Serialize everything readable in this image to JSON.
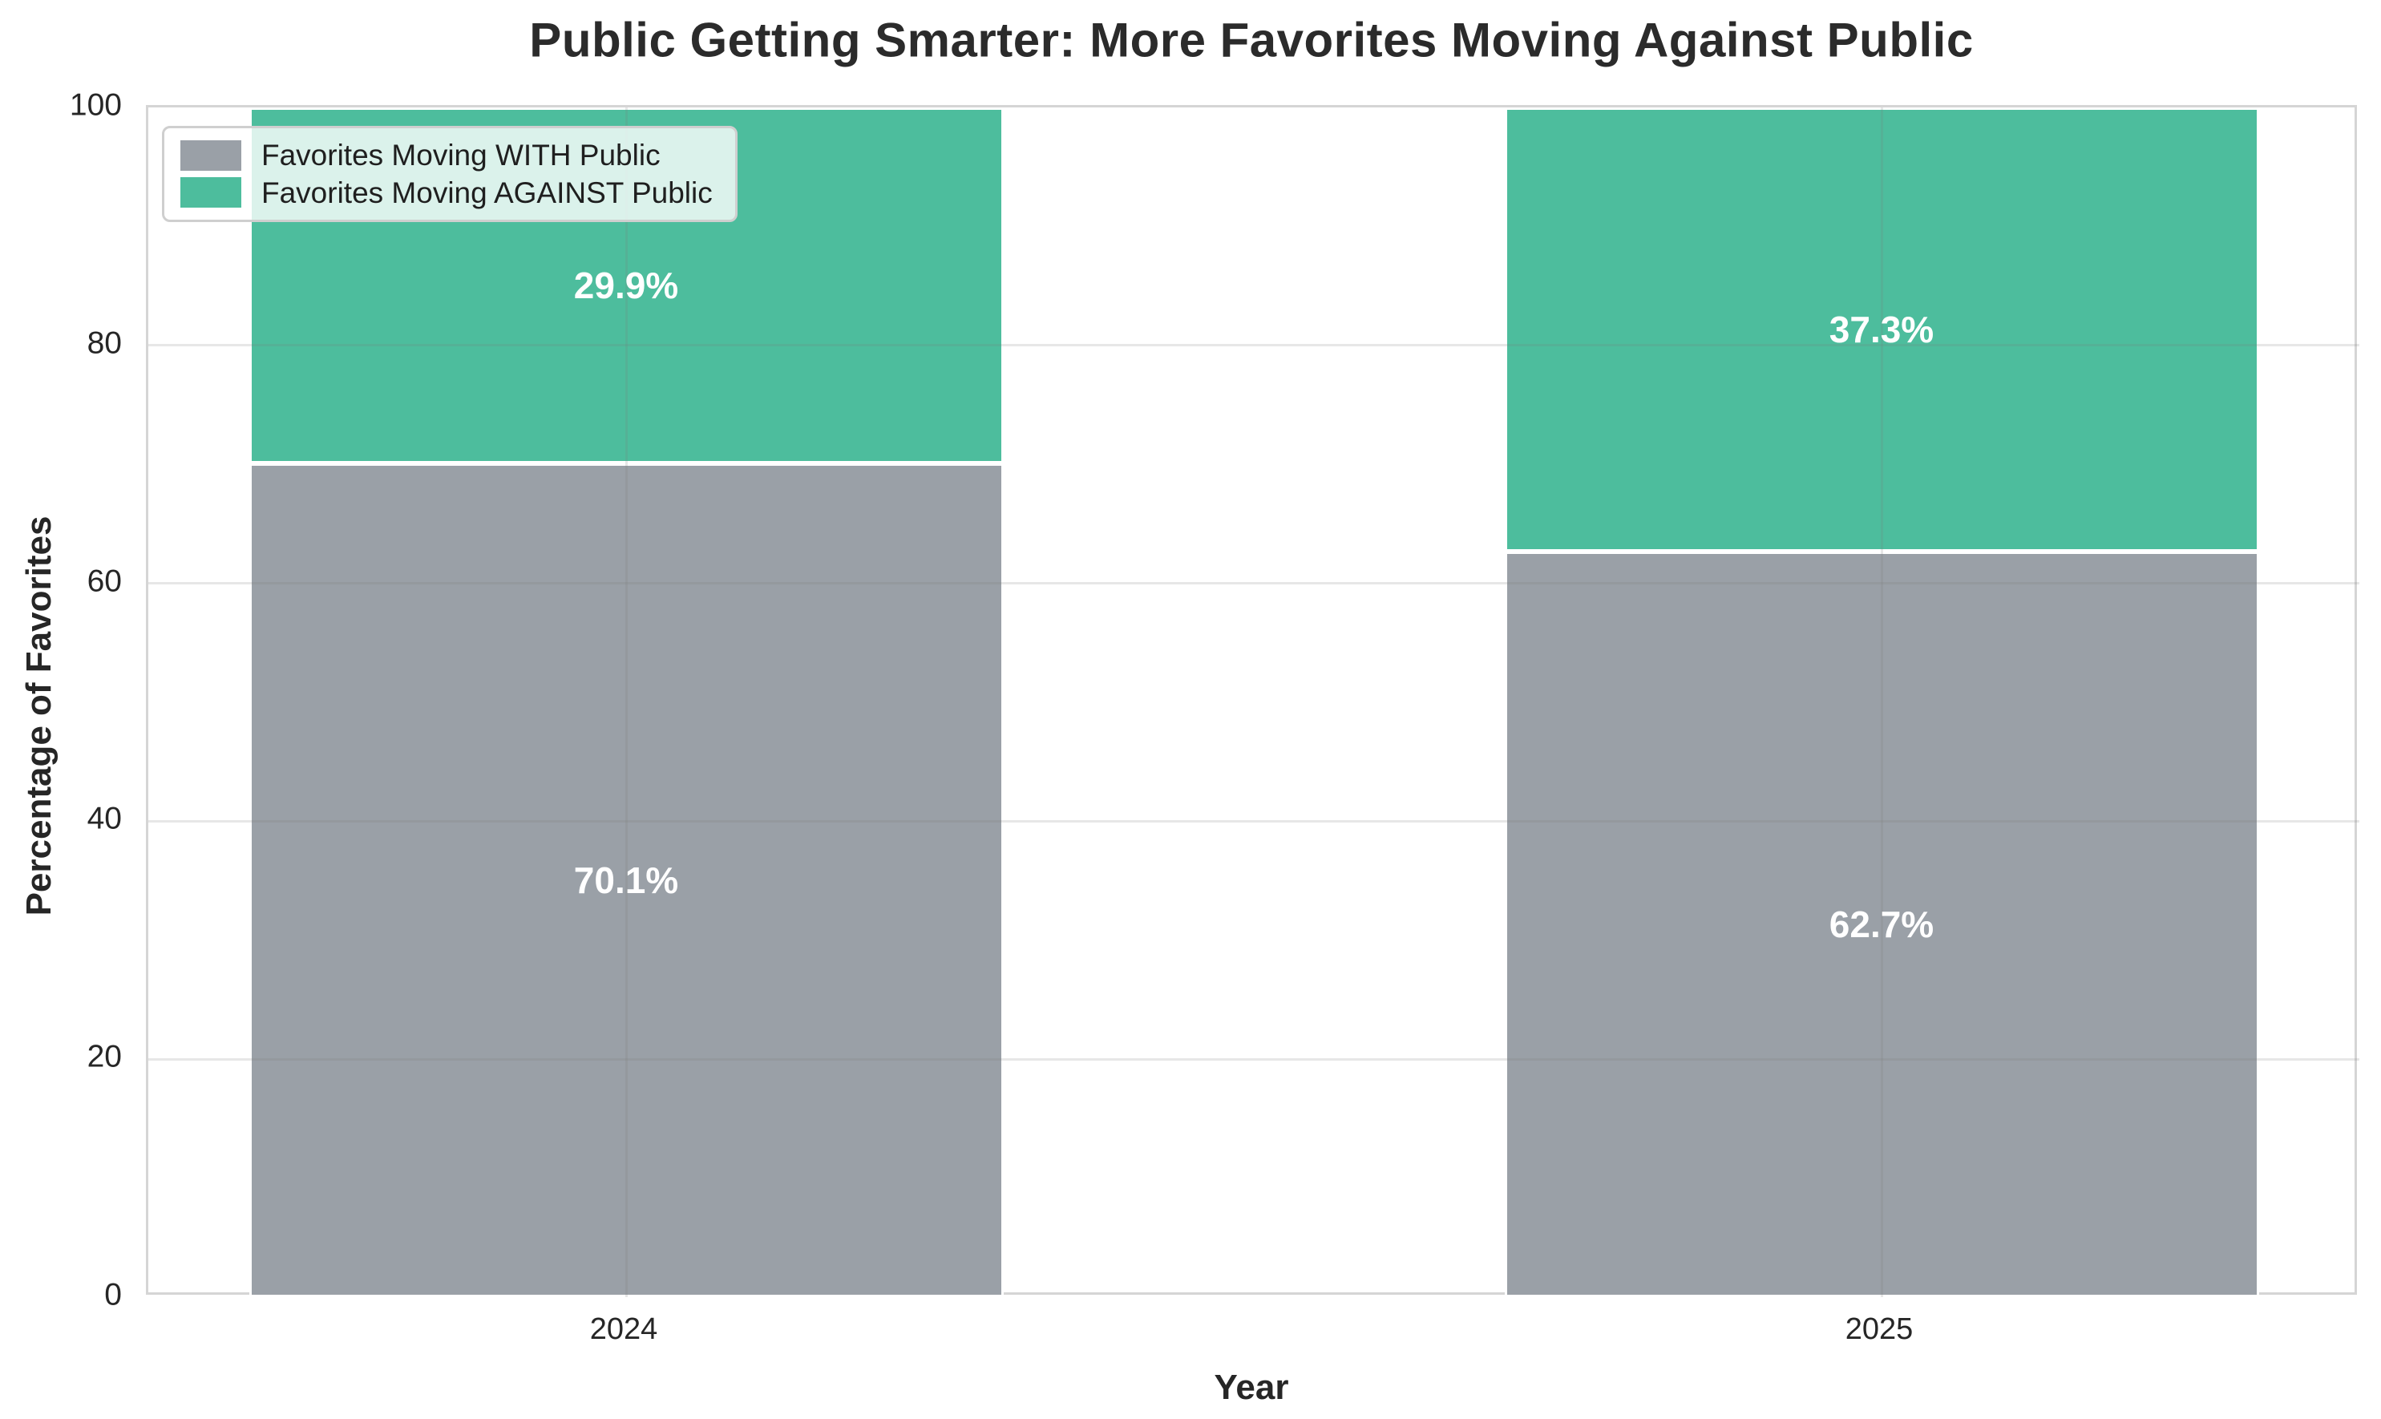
{
  "chart_data": {
    "type": "bar",
    "stacked": true,
    "title": "Public Getting Smarter: More Favorites Moving Against Public",
    "xlabel": "Year",
    "ylabel": "Percentage of Favorites",
    "categories": [
      "2024",
      "2025"
    ],
    "series": [
      {
        "name": "Favorites Moving WITH Public",
        "color": "#9AA0A7",
        "values": [
          70.1,
          62.7
        ],
        "value_labels": [
          "70.1%",
          "62.7%"
        ]
      },
      {
        "name": "Favorites Moving AGAINST Public",
        "color": "#4DBD9D",
        "values": [
          29.9,
          37.3
        ],
        "value_labels": [
          "29.9%",
          "37.3%"
        ]
      }
    ],
    "ylim": [
      0,
      100
    ],
    "yticks": [
      "0",
      "20",
      "40",
      "60",
      "80",
      "100"
    ],
    "grid": true,
    "legend_position": "upper left",
    "colors": {
      "bar_label_text": "#ffffff",
      "axis_text": "#262626",
      "title_text": "#2b2b2b",
      "plot_border": "#d5d5d5",
      "legend_border": "#cfcfcf"
    }
  }
}
